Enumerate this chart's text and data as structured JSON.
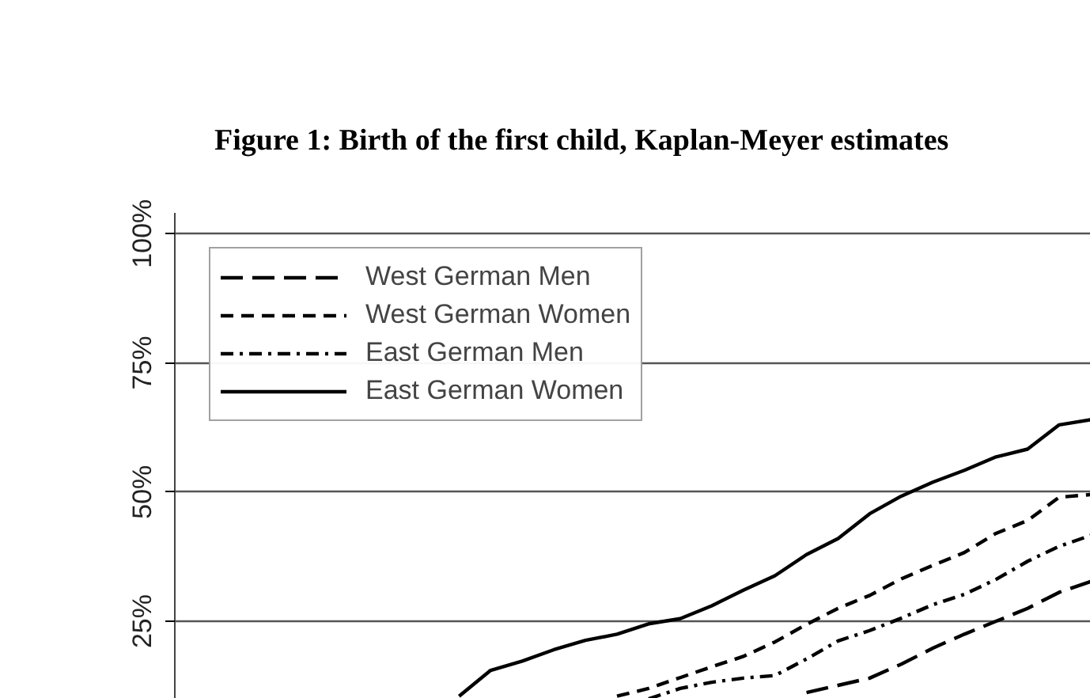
{
  "chart_data": {
    "type": "line",
    "title": "Figure 1:      Birth of the first child, Kaplan-Meyer estimates",
    "categories": [
      null,
      null,
      null,
      null,
      null,
      null,
      null,
      null,
      null,
      null,
      null,
      null,
      null,
      null,
      null,
      null,
      null,
      null,
      null,
      null,
      null,
      null,
      null,
      null,
      null,
      null,
      null,
      null,
      null,
      null
    ],
    "series": [
      {
        "name": "West German Men",
        "color": "#000000",
        "line_style": "longdash",
        "values": [
          null,
          null,
          null,
          null,
          null,
          null,
          null,
          null,
          null,
          null,
          null,
          null,
          null,
          null,
          null,
          null,
          null,
          null,
          null,
          null,
          11.2,
          12.6,
          14,
          16.7,
          19.8,
          22.5,
          25,
          27.5,
          30.6,
          32.7
        ]
      },
      {
        "name": "West German Women",
        "color": "#000000",
        "line_style": "dashed",
        "values": [
          null,
          null,
          null,
          null,
          null,
          null,
          null,
          null,
          null,
          null,
          null,
          null,
          null,
          null,
          10.5,
          12,
          14.1,
          16.2,
          18.2,
          21,
          24.4,
          27.5,
          30,
          33.2,
          35.8,
          38.3,
          42,
          44.5,
          49,
          49.5
        ]
      },
      {
        "name": "East German Men",
        "color": "#000000",
        "line_style": "dashdot",
        "values": [
          null,
          null,
          null,
          null,
          null,
          null,
          null,
          null,
          null,
          null,
          null,
          null,
          null,
          null,
          null,
          10,
          12,
          13.2,
          14,
          14.5,
          17.7,
          21.2,
          23.2,
          25.6,
          28.2,
          30.2,
          33.1,
          36.6,
          39.5,
          41.6
        ]
      },
      {
        "name": "East German Women",
        "color": "#000000",
        "line_style": "solid",
        "values": [
          null,
          null,
          null,
          null,
          null,
          null,
          null,
          null,
          null,
          10.5,
          15.5,
          17.3,
          19.5,
          21.3,
          22.5,
          24.5,
          25.5,
          28,
          31,
          33.8,
          37.9,
          41,
          45.8,
          49.2,
          51.9,
          54.2,
          56.8,
          58.3,
          63,
          64
        ]
      }
    ],
    "ylim": [
      10,
      104
    ],
    "yticks": [
      {
        "value": 25,
        "label": "25%"
      },
      {
        "value": 50,
        "label": "50%"
      },
      {
        "value": 75,
        "label": "75%"
      },
      {
        "value": 100,
        "label": "100%"
      }
    ],
    "grid": "y",
    "legend": "top left",
    "tick_labels": "y"
  }
}
